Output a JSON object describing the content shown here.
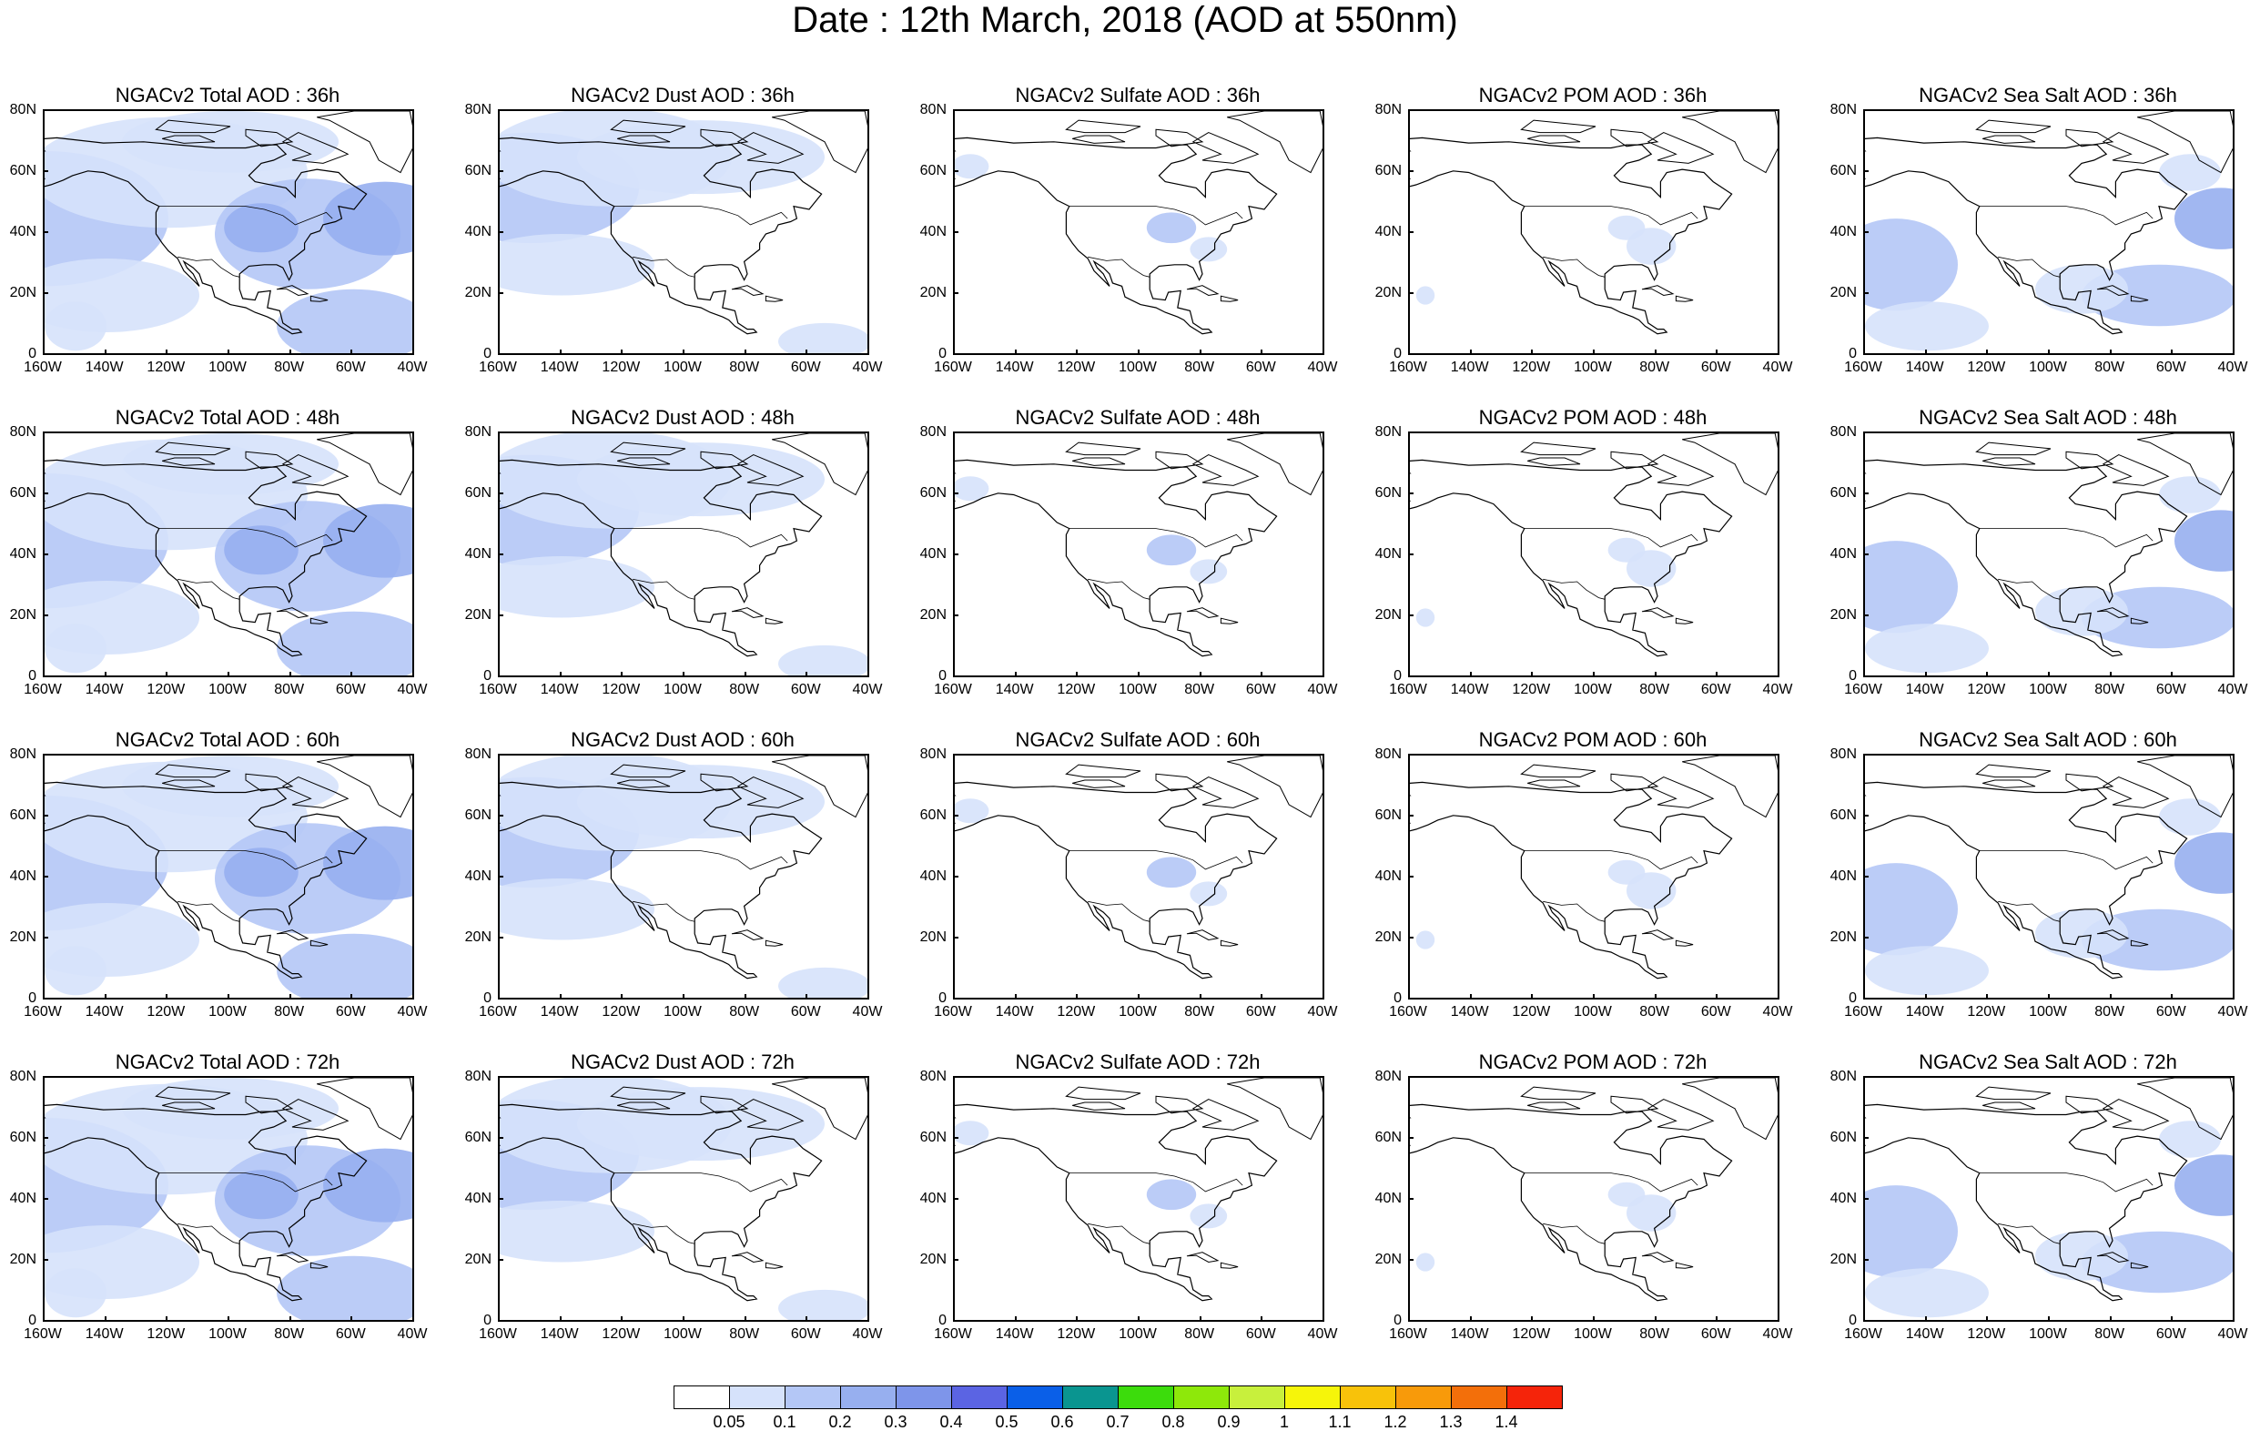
{
  "title": "Date : 12th March, 2018 (AOD at 550nm)",
  "y_ticks": [
    "80N",
    "60N",
    "40N",
    "20N",
    "0"
  ],
  "x_ticks": [
    "160W",
    "140W",
    "120W",
    "100W",
    "80W",
    "60W",
    "40W"
  ],
  "rows": [
    {
      "lead": "36h",
      "panels": [
        {
          "title": "NGACv2 Total AOD : 36h",
          "species": "total"
        },
        {
          "title": "NGACv2 Dust AOD : 36h",
          "species": "dust"
        },
        {
          "title": "NGACv2 Sulfate AOD : 36h",
          "species": "sulfate"
        },
        {
          "title": "NGACv2 POM AOD : 36h",
          "species": "pom"
        },
        {
          "title": "NGACv2 Sea Salt AOD : 36h",
          "species": "seasalt"
        }
      ]
    },
    {
      "lead": "48h",
      "panels": [
        {
          "title": "NGACv2 Total AOD : 48h",
          "species": "total"
        },
        {
          "title": "NGACv2 Dust AOD : 48h",
          "species": "dust"
        },
        {
          "title": "NGACv2 Sulfate AOD : 48h",
          "species": "sulfate"
        },
        {
          "title": "NGACv2 POM AOD : 48h",
          "species": "pom"
        },
        {
          "title": "NGACv2 Sea Salt AOD : 48h",
          "species": "seasalt"
        }
      ]
    },
    {
      "lead": "60h",
      "panels": [
        {
          "title": "NGACv2 Total AOD : 60h",
          "species": "total"
        },
        {
          "title": "NGACv2 Dust AOD : 60h",
          "species": "dust"
        },
        {
          "title": "NGACv2 Sulfate AOD : 60h",
          "species": "sulfate"
        },
        {
          "title": "NGACv2 POM AOD : 60h",
          "species": "pom"
        },
        {
          "title": "NGACv2 Sea Salt AOD : 60h",
          "species": "seasalt"
        }
      ]
    },
    {
      "lead": "72h",
      "panels": [
        {
          "title": "NGACv2 Total AOD : 72h",
          "species": "total"
        },
        {
          "title": "NGACv2 Dust AOD : 72h",
          "species": "dust"
        },
        {
          "title": "NGACv2 Sulfate AOD : 72h",
          "species": "sulfate"
        },
        {
          "title": "NGACv2 POM AOD : 72h",
          "species": "pom"
        },
        {
          "title": "NGACv2 Sea Salt  AOD : 72h",
          "species": "seasalt"
        }
      ]
    }
  ],
  "colorbar": {
    "labels": [
      "0.05",
      "0.1",
      "0.2",
      "0.3",
      "0.4",
      "0.5",
      "0.6",
      "0.7",
      "0.8",
      "0.9",
      "1",
      "1.1",
      "1.2",
      "1.3",
      "1.4"
    ],
    "colors": [
      "#ffffff",
      "#d6e2fb",
      "#b4c7f6",
      "#97afef",
      "#7e95ea",
      "#5b64e3",
      "#0a5fe8",
      "#0a9590",
      "#3cdc0c",
      "#8ee80a",
      "#c8f03c",
      "#f6f50a",
      "#f8c20a",
      "#f89a0a",
      "#f36f0a",
      "#f5240a"
    ]
  }
}
